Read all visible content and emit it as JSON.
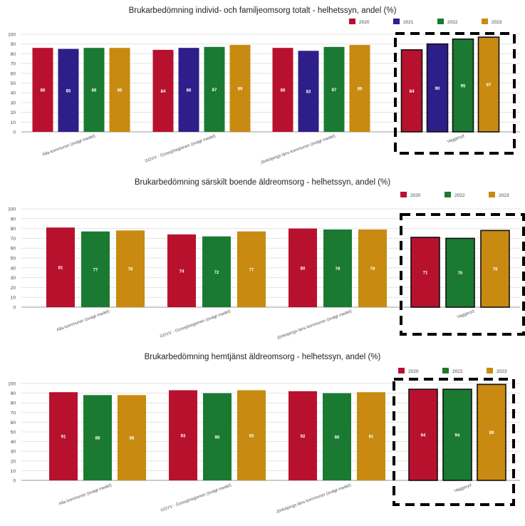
{
  "colors": {
    "2020": "#b8112e",
    "2021": "#2e1e8a",
    "2022": "#1a7a32",
    "2023": "#c88a10"
  },
  "chart_data": [
    {
      "type": "bar",
      "title": "Brukarbedömning individ- och familjeomsorg totalt - helhetssyn, andel (%)",
      "categories": [
        "Alla kommuner (ovägt medel)",
        "GGVV - Grossjöregionen (ovägt medel)",
        "Jönköpings läns kommuner (ovägt medel)",
        "Vaggeryd"
      ],
      "series": [
        {
          "name": "2020",
          "values": [
            86,
            84,
            86,
            84
          ]
        },
        {
          "name": "2021",
          "values": [
            85,
            86,
            83,
            90
          ]
        },
        {
          "name": "2022",
          "values": [
            86,
            87,
            87,
            95
          ]
        },
        {
          "name": "2023",
          "values": [
            86,
            89,
            89,
            97
          ]
        }
      ],
      "ylim": [
        0,
        100
      ],
      "yticks": [
        0,
        10,
        20,
        30,
        40,
        50,
        60,
        70,
        80,
        90,
        100
      ],
      "legend": "top-right",
      "highlight": "Vaggeryd"
    },
    {
      "type": "bar",
      "title": "Brukarbedömning särskilt boende äldreomsorg - helhetssyn, andel (%)",
      "categories": [
        "Alla kommuner (ovägt medel)",
        "GGVV - Grossjöregionen (ovägt medel)",
        "Jönköpings läns kommuner (ovägt medel)",
        "Vaggeryd"
      ],
      "series": [
        {
          "name": "2020",
          "values": [
            81,
            74,
            80,
            71
          ]
        },
        {
          "name": "2022",
          "values": [
            77,
            72,
            79,
            70
          ]
        },
        {
          "name": "2023",
          "values": [
            78,
            77,
            79,
            78
          ]
        }
      ],
      "ylim": [
        0,
        100
      ],
      "yticks": [
        0,
        10,
        20,
        30,
        40,
        50,
        60,
        70,
        80,
        90,
        100
      ],
      "legend": "top-right",
      "highlight": "Vaggeryd"
    },
    {
      "type": "bar",
      "title": "Brukarbedömning hemtjänst äldreomsorg - helhetssyn, andel (%)",
      "categories": [
        "Alla kommuner (ovägt medel)",
        "GGVV - Grossjöregionen (ovägt medel)",
        "Jönköpings läns kommuner (ovägt medel)",
        "Vaggeryd"
      ],
      "series": [
        {
          "name": "2020",
          "values": [
            91,
            93,
            92,
            94
          ]
        },
        {
          "name": "2022",
          "values": [
            88,
            90,
            90,
            94
          ]
        },
        {
          "name": "2023",
          "values": [
            88,
            93,
            91,
            99
          ]
        }
      ],
      "ylim": [
        0,
        100
      ],
      "yticks": [
        0,
        10,
        20,
        30,
        40,
        50,
        60,
        70,
        80,
        90,
        100
      ],
      "legend": "top-right",
      "highlight": "Vaggeryd"
    }
  ]
}
